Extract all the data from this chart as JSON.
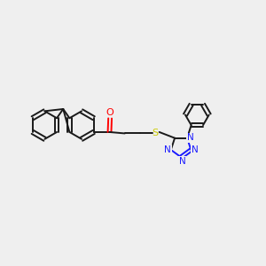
{
  "bg_color": "#efefef",
  "bond_color": "#1a1a1a",
  "N_color": "#1a1aff",
  "O_color": "#ff0000",
  "S_color": "#cccc00",
  "line_width": 1.4,
  "figsize": [
    3.0,
    3.0
  ],
  "dpi": 100,
  "xlim": [
    0,
    10
  ],
  "ylim": [
    0,
    10
  ]
}
